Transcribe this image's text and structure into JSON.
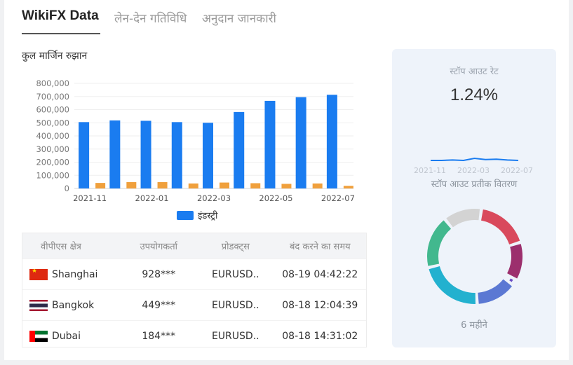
{
  "tabs": [
    {
      "label": "WikiFX Data",
      "active": true
    },
    {
      "label": "लेन-देन गतिविधि",
      "active": false
    },
    {
      "label": "अनुदान जानकारी",
      "active": false
    }
  ],
  "margin_section": {
    "title": "कुल मार्जिन रुझान",
    "legend_label": "इंडस्ट्री",
    "legend_color": "#1a7cf0"
  },
  "chart_data": {
    "type": "bar",
    "categories": [
      "2021-11",
      "2021-12",
      "2022-01",
      "2022-02",
      "2022-03",
      "2022-04",
      "2022-05",
      "2022-06",
      "2022-07"
    ],
    "x_tick_labels": [
      "2021-11",
      "2022-01",
      "2022-03",
      "2022-05",
      "2022-07"
    ],
    "y_tick_labels": [
      "0",
      "100,000",
      "200,000",
      "300,000",
      "400,000",
      "500,000",
      "600,000",
      "700,000",
      "800,000"
    ],
    "ylim": [
      0,
      800000
    ],
    "grid": true,
    "legend_position": "bottom",
    "series": [
      {
        "name": "इंडस्ट्री",
        "color": "#1a7cf0",
        "values": [
          505000,
          518000,
          515000,
          505000,
          500000,
          582000,
          667000,
          695000,
          713000
        ]
      },
      {
        "color": "#f0a03c",
        "values": [
          42000,
          48000,
          48000,
          38000,
          45000,
          40000,
          35000,
          38000,
          20000
        ]
      }
    ]
  },
  "table": {
    "headers": [
      "वीपीएस क्षेत्र",
      "उपयोगकर्ता",
      "प्रोडक्ट्स",
      "बंद करने का समय"
    ],
    "rows": [
      {
        "flag": "china-flag",
        "region": "Shanghai",
        "user": "928***",
        "product": "EURUSD..",
        "time": "08-19 04:42:22"
      },
      {
        "flag": "thailand-flag",
        "region": "Bangkok",
        "user": "449***",
        "product": "EURUSD..",
        "time": "08-18 12:04:39"
      },
      {
        "flag": "uae-flag",
        "region": "Dubai",
        "user": "184***",
        "product": "EURUSD..",
        "time": "08-18 14:31:02"
      }
    ]
  },
  "stopout_panel": {
    "title": "स्टॉप आउट रेट",
    "rate": "1.24%",
    "spark_axis": [
      "2021-11",
      "2022-03",
      "2022-07"
    ],
    "spark_values": [
      0.3,
      0.3,
      0.35,
      0.3,
      0.55,
      0.4,
      0.45,
      0.35,
      0.3
    ],
    "distribution_title": "स्टॉप आउट प्रतीक वितरण",
    "period_label": "6 महीने",
    "donut_segments": [
      {
        "color": "#d9495c",
        "value": 18
      },
      {
        "color": "#9c2f6d",
        "value": 13
      },
      {
        "color": "#6a4bc4",
        "value": 2
      },
      {
        "color": "#5b78d3",
        "value": 14
      },
      {
        "color": "#23b1cf",
        "value": 22
      },
      {
        "color": "#42b88e",
        "value": 18
      },
      {
        "color": "#d3d3d3",
        "value": 13
      }
    ]
  }
}
